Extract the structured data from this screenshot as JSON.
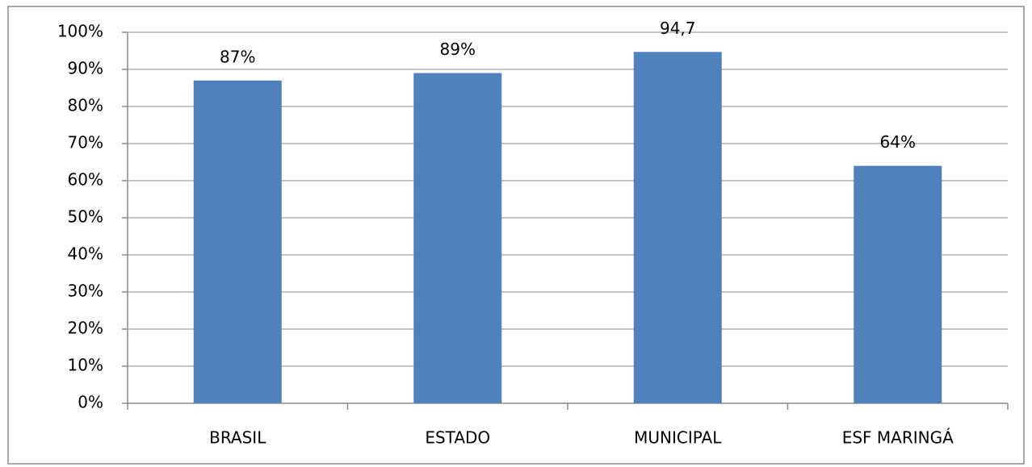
{
  "chart_data": {
    "type": "bar",
    "categories": [
      "BRASIL",
      "ESTADO",
      "MUNICIPAL",
      "ESF MARINGÁ"
    ],
    "values": [
      87,
      89,
      94.7,
      64
    ],
    "value_labels": [
      "87%",
      "89%",
      "94,7",
      "64%"
    ],
    "color": "#4f81bd",
    "ylim": [
      0,
      100
    ],
    "yticks": [
      {
        "value": 0,
        "label": "0%"
      },
      {
        "value": 10,
        "label": "10%"
      },
      {
        "value": 20,
        "label": "20%"
      },
      {
        "value": 30,
        "label": "30%"
      },
      {
        "value": 40,
        "label": "40%"
      },
      {
        "value": 50,
        "label": "50%"
      },
      {
        "value": 60,
        "label": "60%"
      },
      {
        "value": 70,
        "label": "70%"
      },
      {
        "value": 80,
        "label": "80%"
      },
      {
        "value": 90,
        "label": "90%"
      },
      {
        "value": 100,
        "label": "100%"
      }
    ],
    "grid": true
  }
}
